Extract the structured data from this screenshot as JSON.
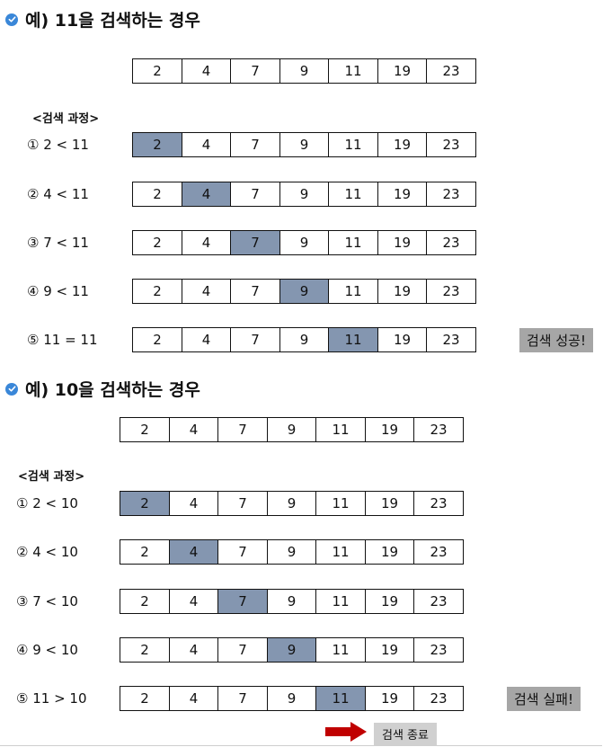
{
  "examples": [
    {
      "title": "예) 11을 검색하는 경우",
      "array": [
        "2",
        "4",
        "7",
        "9",
        "11",
        "19",
        "23"
      ],
      "process_label": "<검색 과정>",
      "steps": [
        {
          "label": "① 2 < 11",
          "highlight": 0
        },
        {
          "label": "② 4 < 11",
          "highlight": 1
        },
        {
          "label": "③ 7 < 11",
          "highlight": 2
        },
        {
          "label": "④ 9 < 11",
          "highlight": 3
        },
        {
          "label": "⑤ 11 = 11",
          "highlight": 4
        }
      ],
      "result": "검색 성공!"
    },
    {
      "title": "예) 10을 검색하는 경우",
      "array": [
        "2",
        "4",
        "7",
        "9",
        "11",
        "19",
        "23"
      ],
      "process_label": "<검색 과정>",
      "steps": [
        {
          "label": "① 2 < 10",
          "highlight": 0
        },
        {
          "label": "② 4 < 10",
          "highlight": 1
        },
        {
          "label": "③ 7 < 10",
          "highlight": 2
        },
        {
          "label": "④ 9 < 10",
          "highlight": 3
        },
        {
          "label": "⑤ 11 > 10",
          "highlight": 4
        }
      ],
      "result": "검색 실패!",
      "end_label": "검색 종료"
    }
  ],
  "colors": {
    "highlight": "#8496b0",
    "result_bg": "#a6a6a6",
    "end_bg": "#d0d0d0",
    "arrow": "#c00000",
    "check_icon": "#3a87d8"
  }
}
